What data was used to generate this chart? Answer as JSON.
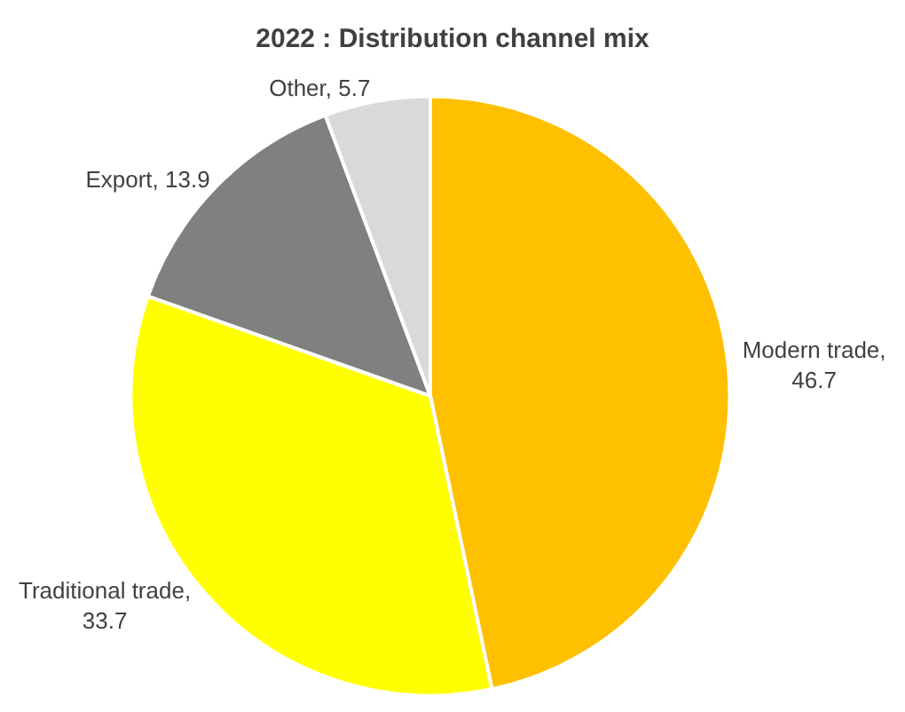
{
  "chart_data": {
    "type": "pie",
    "title": "2022 : Distribution channel mix",
    "categories": [
      "Modern trade",
      "Traditional trade",
      "Export",
      "Other"
    ],
    "values": [
      46.7,
      33.7,
      13.9,
      5.7
    ],
    "colors": [
      "#ffc000",
      "#ffff00",
      "#808080",
      "#d9d9d9"
    ],
    "value_labels": [
      ", 46.7",
      ", 33.7",
      ", 13.9",
      ", 5.7"
    ],
    "legend": false
  }
}
